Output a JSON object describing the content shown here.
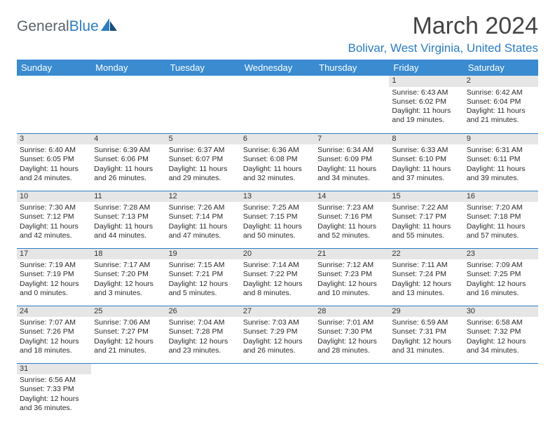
{
  "brand": {
    "part1": "General",
    "part2": "Blue"
  },
  "title": "March 2024",
  "location": "Bolivar, West Virginia, United States",
  "weekday_headers": [
    "Sunday",
    "Monday",
    "Tuesday",
    "Wednesday",
    "Thursday",
    "Friday",
    "Saturday"
  ],
  "colors": {
    "brand_blue": "#2b7dc4",
    "header_bg": "#3a8bd0",
    "daynum_bg": "#e6e6e6",
    "text": "#333333"
  },
  "weeks": [
    [
      null,
      null,
      null,
      null,
      null,
      {
        "d": "1",
        "sr": "Sunrise: 6:43 AM",
        "ss": "Sunset: 6:02 PM",
        "dl1": "Daylight: 11 hours",
        "dl2": "and 19 minutes."
      },
      {
        "d": "2",
        "sr": "Sunrise: 6:42 AM",
        "ss": "Sunset: 6:04 PM",
        "dl1": "Daylight: 11 hours",
        "dl2": "and 21 minutes."
      }
    ],
    [
      {
        "d": "3",
        "sr": "Sunrise: 6:40 AM",
        "ss": "Sunset: 6:05 PM",
        "dl1": "Daylight: 11 hours",
        "dl2": "and 24 minutes."
      },
      {
        "d": "4",
        "sr": "Sunrise: 6:39 AM",
        "ss": "Sunset: 6:06 PM",
        "dl1": "Daylight: 11 hours",
        "dl2": "and 26 minutes."
      },
      {
        "d": "5",
        "sr": "Sunrise: 6:37 AM",
        "ss": "Sunset: 6:07 PM",
        "dl1": "Daylight: 11 hours",
        "dl2": "and 29 minutes."
      },
      {
        "d": "6",
        "sr": "Sunrise: 6:36 AM",
        "ss": "Sunset: 6:08 PM",
        "dl1": "Daylight: 11 hours",
        "dl2": "and 32 minutes."
      },
      {
        "d": "7",
        "sr": "Sunrise: 6:34 AM",
        "ss": "Sunset: 6:09 PM",
        "dl1": "Daylight: 11 hours",
        "dl2": "and 34 minutes."
      },
      {
        "d": "8",
        "sr": "Sunrise: 6:33 AM",
        "ss": "Sunset: 6:10 PM",
        "dl1": "Daylight: 11 hours",
        "dl2": "and 37 minutes."
      },
      {
        "d": "9",
        "sr": "Sunrise: 6:31 AM",
        "ss": "Sunset: 6:11 PM",
        "dl1": "Daylight: 11 hours",
        "dl2": "and 39 minutes."
      }
    ],
    [
      {
        "d": "10",
        "sr": "Sunrise: 7:30 AM",
        "ss": "Sunset: 7:12 PM",
        "dl1": "Daylight: 11 hours",
        "dl2": "and 42 minutes."
      },
      {
        "d": "11",
        "sr": "Sunrise: 7:28 AM",
        "ss": "Sunset: 7:13 PM",
        "dl1": "Daylight: 11 hours",
        "dl2": "and 44 minutes."
      },
      {
        "d": "12",
        "sr": "Sunrise: 7:26 AM",
        "ss": "Sunset: 7:14 PM",
        "dl1": "Daylight: 11 hours",
        "dl2": "and 47 minutes."
      },
      {
        "d": "13",
        "sr": "Sunrise: 7:25 AM",
        "ss": "Sunset: 7:15 PM",
        "dl1": "Daylight: 11 hours",
        "dl2": "and 50 minutes."
      },
      {
        "d": "14",
        "sr": "Sunrise: 7:23 AM",
        "ss": "Sunset: 7:16 PM",
        "dl1": "Daylight: 11 hours",
        "dl2": "and 52 minutes."
      },
      {
        "d": "15",
        "sr": "Sunrise: 7:22 AM",
        "ss": "Sunset: 7:17 PM",
        "dl1": "Daylight: 11 hours",
        "dl2": "and 55 minutes."
      },
      {
        "d": "16",
        "sr": "Sunrise: 7:20 AM",
        "ss": "Sunset: 7:18 PM",
        "dl1": "Daylight: 11 hours",
        "dl2": "and 57 minutes."
      }
    ],
    [
      {
        "d": "17",
        "sr": "Sunrise: 7:19 AM",
        "ss": "Sunset: 7:19 PM",
        "dl1": "Daylight: 12 hours",
        "dl2": "and 0 minutes."
      },
      {
        "d": "18",
        "sr": "Sunrise: 7:17 AM",
        "ss": "Sunset: 7:20 PM",
        "dl1": "Daylight: 12 hours",
        "dl2": "and 3 minutes."
      },
      {
        "d": "19",
        "sr": "Sunrise: 7:15 AM",
        "ss": "Sunset: 7:21 PM",
        "dl1": "Daylight: 12 hours",
        "dl2": "and 5 minutes."
      },
      {
        "d": "20",
        "sr": "Sunrise: 7:14 AM",
        "ss": "Sunset: 7:22 PM",
        "dl1": "Daylight: 12 hours",
        "dl2": "and 8 minutes."
      },
      {
        "d": "21",
        "sr": "Sunrise: 7:12 AM",
        "ss": "Sunset: 7:23 PM",
        "dl1": "Daylight: 12 hours",
        "dl2": "and 10 minutes."
      },
      {
        "d": "22",
        "sr": "Sunrise: 7:11 AM",
        "ss": "Sunset: 7:24 PM",
        "dl1": "Daylight: 12 hours",
        "dl2": "and 13 minutes."
      },
      {
        "d": "23",
        "sr": "Sunrise: 7:09 AM",
        "ss": "Sunset: 7:25 PM",
        "dl1": "Daylight: 12 hours",
        "dl2": "and 16 minutes."
      }
    ],
    [
      {
        "d": "24",
        "sr": "Sunrise: 7:07 AM",
        "ss": "Sunset: 7:26 PM",
        "dl1": "Daylight: 12 hours",
        "dl2": "and 18 minutes."
      },
      {
        "d": "25",
        "sr": "Sunrise: 7:06 AM",
        "ss": "Sunset: 7:27 PM",
        "dl1": "Daylight: 12 hours",
        "dl2": "and 21 minutes."
      },
      {
        "d": "26",
        "sr": "Sunrise: 7:04 AM",
        "ss": "Sunset: 7:28 PM",
        "dl1": "Daylight: 12 hours",
        "dl2": "and 23 minutes."
      },
      {
        "d": "27",
        "sr": "Sunrise: 7:03 AM",
        "ss": "Sunset: 7:29 PM",
        "dl1": "Daylight: 12 hours",
        "dl2": "and 26 minutes."
      },
      {
        "d": "28",
        "sr": "Sunrise: 7:01 AM",
        "ss": "Sunset: 7:30 PM",
        "dl1": "Daylight: 12 hours",
        "dl2": "and 28 minutes."
      },
      {
        "d": "29",
        "sr": "Sunrise: 6:59 AM",
        "ss": "Sunset: 7:31 PM",
        "dl1": "Daylight: 12 hours",
        "dl2": "and 31 minutes."
      },
      {
        "d": "30",
        "sr": "Sunrise: 6:58 AM",
        "ss": "Sunset: 7:32 PM",
        "dl1": "Daylight: 12 hours",
        "dl2": "and 34 minutes."
      }
    ],
    [
      {
        "d": "31",
        "sr": "Sunrise: 6:56 AM",
        "ss": "Sunset: 7:33 PM",
        "dl1": "Daylight: 12 hours",
        "dl2": "and 36 minutes."
      },
      null,
      null,
      null,
      null,
      null,
      null
    ]
  ]
}
